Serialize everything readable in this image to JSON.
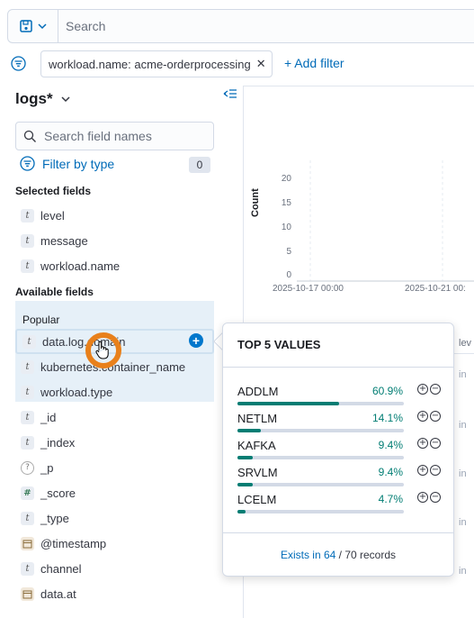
{
  "search": {
    "placeholder": "Search"
  },
  "filters": {
    "pill_label": "workload.name: acme-orderprocessing",
    "add_label": "+ Add filter"
  },
  "sidebar": {
    "index_pattern": "logs*",
    "field_search_placeholder": "Search field names",
    "filter_by_type_label": "Filter by type",
    "filter_count": "0",
    "selected_heading": "Selected fields",
    "selected_fields": [
      "level",
      "message",
      "workload.name"
    ],
    "available_heading": "Available fields",
    "popular_heading": "Popular",
    "popular_fields": [
      "data.log.domain",
      "kubernetes.container_name",
      "workload.type"
    ],
    "other_fields": [
      {
        "name": "_id",
        "type": "t"
      },
      {
        "name": "_index",
        "type": "t"
      },
      {
        "name": "_p",
        "type": "?"
      },
      {
        "name": "_score",
        "type": "#"
      },
      {
        "name": "_type",
        "type": "t"
      },
      {
        "name": "@timestamp",
        "type": "date"
      },
      {
        "name": "channel",
        "type": "t"
      },
      {
        "name": "data.at",
        "type": "date"
      }
    ]
  },
  "chart": {
    "ylabel": "Count",
    "yticks": [
      "20",
      "15",
      "10",
      "5",
      "0"
    ],
    "xticks": [
      "2025-10-17 00:00",
      "2025-10-21 00:"
    ],
    "table_header_stub": "lev",
    "row_stub": "in"
  },
  "popover": {
    "title": "TOP 5 VALUES",
    "values": [
      {
        "name": "ADDLM",
        "pct_label": "60.9%",
        "fraction": 0.609
      },
      {
        "name": "NETLM",
        "pct_label": "14.1%",
        "fraction": 0.141
      },
      {
        "name": "KAFKA",
        "pct_label": "9.4%",
        "fraction": 0.094
      },
      {
        "name": "SRVLM",
        "pct_label": "9.4%",
        "fraction": 0.094
      },
      {
        "name": "LCELM",
        "pct_label": "4.7%",
        "fraction": 0.047
      }
    ],
    "exists_link": "Exists in 64",
    "exists_rest": " / 70 records"
  },
  "colors": {
    "accent": "#006bb8",
    "bar": "#017d73",
    "cursor_ring": "#e8801b"
  }
}
